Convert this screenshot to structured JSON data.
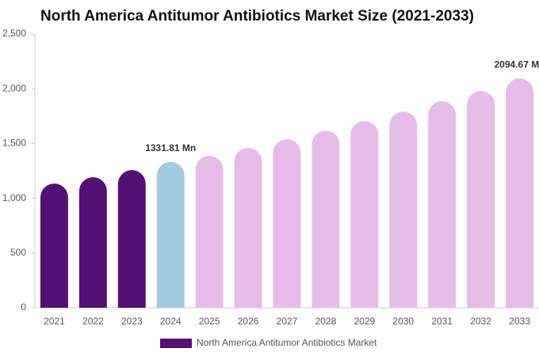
{
  "chart_data": {
    "type": "bar",
    "title": "North America Antitumor Antibiotics Market Size (2021-2033)",
    "categories": [
      "2021",
      "2022",
      "2023",
      "2024",
      "2025",
      "2026",
      "2027",
      "2028",
      "2029",
      "2030",
      "2031",
      "2032",
      "2033"
    ],
    "series": [
      {
        "name": "North America Antitumor Antibiotics Market",
        "color": "#541173",
        "values": [
          1134,
          1192,
          1257,
          1331.81,
          1387,
          1460,
          1539,
          1618,
          1705,
          1792,
          1886,
          1980,
          2094.67
        ],
        "value_labels": [
          null,
          null,
          null,
          "1331.81 Mn",
          null,
          null,
          null,
          null,
          null,
          null,
          null,
          null,
          "2094.67 Mn"
        ],
        "colors": [
          "#541173",
          "#541173",
          "#541173",
          "#a3cbe0",
          "#e6bde8",
          "#e6bde8",
          "#e6bde8",
          "#e6bde8",
          "#e6bde8",
          "#e6bde8",
          "#e6bde8",
          "#e6bde8",
          "#e6bde8"
        ]
      }
    ],
    "ylim": [
      0,
      2500
    ],
    "yticks": [
      0,
      500,
      {
        "value": 1000,
        "label": "1,000"
      },
      {
        "value": 1500,
        "label": "1,500"
      },
      {
        "value": 2000,
        "label": "2,000"
      },
      {
        "value": 2500,
        "label": "2,500"
      }
    ],
    "grid": false
  }
}
